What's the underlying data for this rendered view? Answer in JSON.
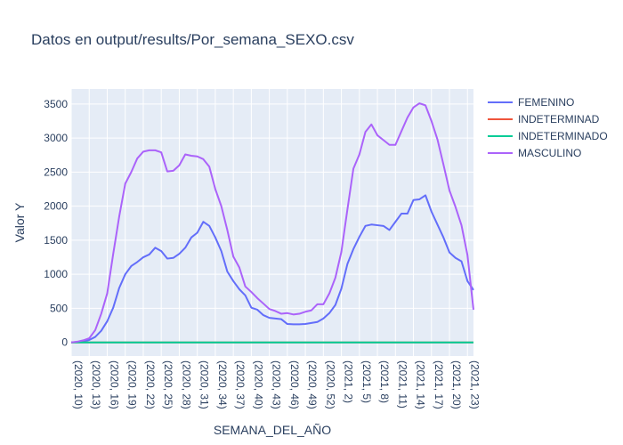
{
  "chart_data": {
    "type": "line",
    "title": "Datos en output/results/Por_semana_SEXO.csv",
    "xlabel": "SEMANA_DEL_AÑO",
    "ylabel": "Valor Y",
    "ylim": [
      -200,
      3720
    ],
    "yticks": [
      0,
      500,
      1000,
      1500,
      2000,
      2500,
      3000,
      3500
    ],
    "xtick_every": 3,
    "x": [
      "(2020, 10)",
      "(2020, 11)",
      "(2020, 12)",
      "(2020, 13)",
      "(2020, 14)",
      "(2020, 15)",
      "(2020, 16)",
      "(2020, 17)",
      "(2020, 18)",
      "(2020, 19)",
      "(2020, 20)",
      "(2020, 21)",
      "(2020, 22)",
      "(2020, 23)",
      "(2020, 24)",
      "(2020, 25)",
      "(2020, 26)",
      "(2020, 27)",
      "(2020, 28)",
      "(2020, 29)",
      "(2020, 30)",
      "(2020, 31)",
      "(2020, 32)",
      "(2020, 33)",
      "(2020, 34)",
      "(2020, 35)",
      "(2020, 36)",
      "(2020, 37)",
      "(2020, 38)",
      "(2020, 39)",
      "(2020, 40)",
      "(2020, 41)",
      "(2020, 42)",
      "(2020, 43)",
      "(2020, 44)",
      "(2020, 45)",
      "(2020, 46)",
      "(2020, 47)",
      "(2020, 48)",
      "(2020, 49)",
      "(2020, 50)",
      "(2020, 51)",
      "(2020, 52)",
      "(2020, 53)",
      "(2021, 1)",
      "(2021, 2)",
      "(2021, 3)",
      "(2021, 4)",
      "(2021, 5)",
      "(2021, 6)",
      "(2021, 7)",
      "(2021, 8)",
      "(2021, 9)",
      "(2021, 10)",
      "(2021, 11)",
      "(2021, 12)",
      "(2021, 13)",
      "(2021, 14)",
      "(2021, 15)",
      "(2021, 16)",
      "(2021, 17)",
      "(2021, 18)",
      "(2021, 19)",
      "(2021, 20)",
      "(2021, 21)",
      "(2021, 22)",
      "(2021, 23)",
      "(2021, 24)"
    ],
    "series": [
      {
        "name": "FEMENINO",
        "color": "#636efa",
        "values": [
          0,
          5,
          15,
          35,
          80,
          170,
          310,
          510,
          800,
          1000,
          1120,
          1180,
          1250,
          1290,
          1390,
          1340,
          1230,
          1240,
          1300,
          1390,
          1540,
          1610,
          1770,
          1710,
          1540,
          1340,
          1040,
          900,
          780,
          690,
          510,
          480,
          400,
          360,
          350,
          340,
          270,
          265,
          265,
          270,
          285,
          300,
          350,
          430,
          550,
          790,
          1150,
          1370,
          1550,
          1710,
          1730,
          1720,
          1710,
          1650,
          1770,
          1890,
          1890,
          2090,
          2100,
          2160,
          1920,
          1730,
          1540,
          1320,
          1240,
          1190,
          900,
          770
        ]
      },
      {
        "name": "INDETERMINAD",
        "color": "#EF553B",
        "values": [
          0,
          0,
          0,
          0,
          0,
          0,
          0,
          0,
          0,
          0,
          0,
          0,
          0,
          0,
          0,
          0,
          0,
          0,
          0,
          0,
          0,
          0,
          0,
          0,
          0,
          0,
          0,
          0,
          0,
          0,
          0,
          0,
          0,
          0,
          0,
          0,
          0,
          0,
          0,
          0,
          0,
          0,
          0,
          0,
          0,
          0,
          0,
          0,
          0,
          0,
          0,
          0,
          0,
          0,
          0,
          0,
          0,
          0,
          0,
          0,
          0,
          0,
          0,
          0,
          0,
          0,
          0,
          0
        ]
      },
      {
        "name": "INDETERMINADO",
        "color": "#00cc96",
        "values": [
          0,
          0,
          0,
          0,
          0,
          0,
          0,
          0,
          0,
          0,
          0,
          0,
          0,
          0,
          0,
          0,
          0,
          0,
          0,
          0,
          0,
          0,
          0,
          0,
          0,
          0,
          0,
          0,
          0,
          0,
          0,
          0,
          0,
          0,
          0,
          0,
          0,
          0,
          0,
          0,
          0,
          0,
          0,
          0,
          0,
          0,
          0,
          0,
          0,
          0,
          0,
          0,
          0,
          0,
          0,
          0,
          0,
          0,
          0,
          0,
          0,
          0,
          0,
          0,
          0,
          0,
          0,
          0
        ]
      },
      {
        "name": "MASCULINO",
        "color": "#ab63fa",
        "values": [
          0,
          10,
          30,
          60,
          180,
          420,
          720,
          1300,
          1850,
          2330,
          2500,
          2700,
          2800,
          2820,
          2820,
          2790,
          2510,
          2520,
          2600,
          2760,
          2740,
          2730,
          2690,
          2580,
          2250,
          2000,
          1650,
          1260,
          1100,
          820,
          740,
          650,
          570,
          490,
          460,
          420,
          430,
          410,
          420,
          450,
          470,
          560,
          560,
          720,
          950,
          1330,
          1950,
          2550,
          2760,
          3090,
          3200,
          3040,
          2970,
          2900,
          2900,
          3100,
          3300,
          3450,
          3510,
          3480,
          3250,
          2980,
          2610,
          2230,
          1990,
          1720,
          1280,
          480
        ]
      }
    ]
  }
}
